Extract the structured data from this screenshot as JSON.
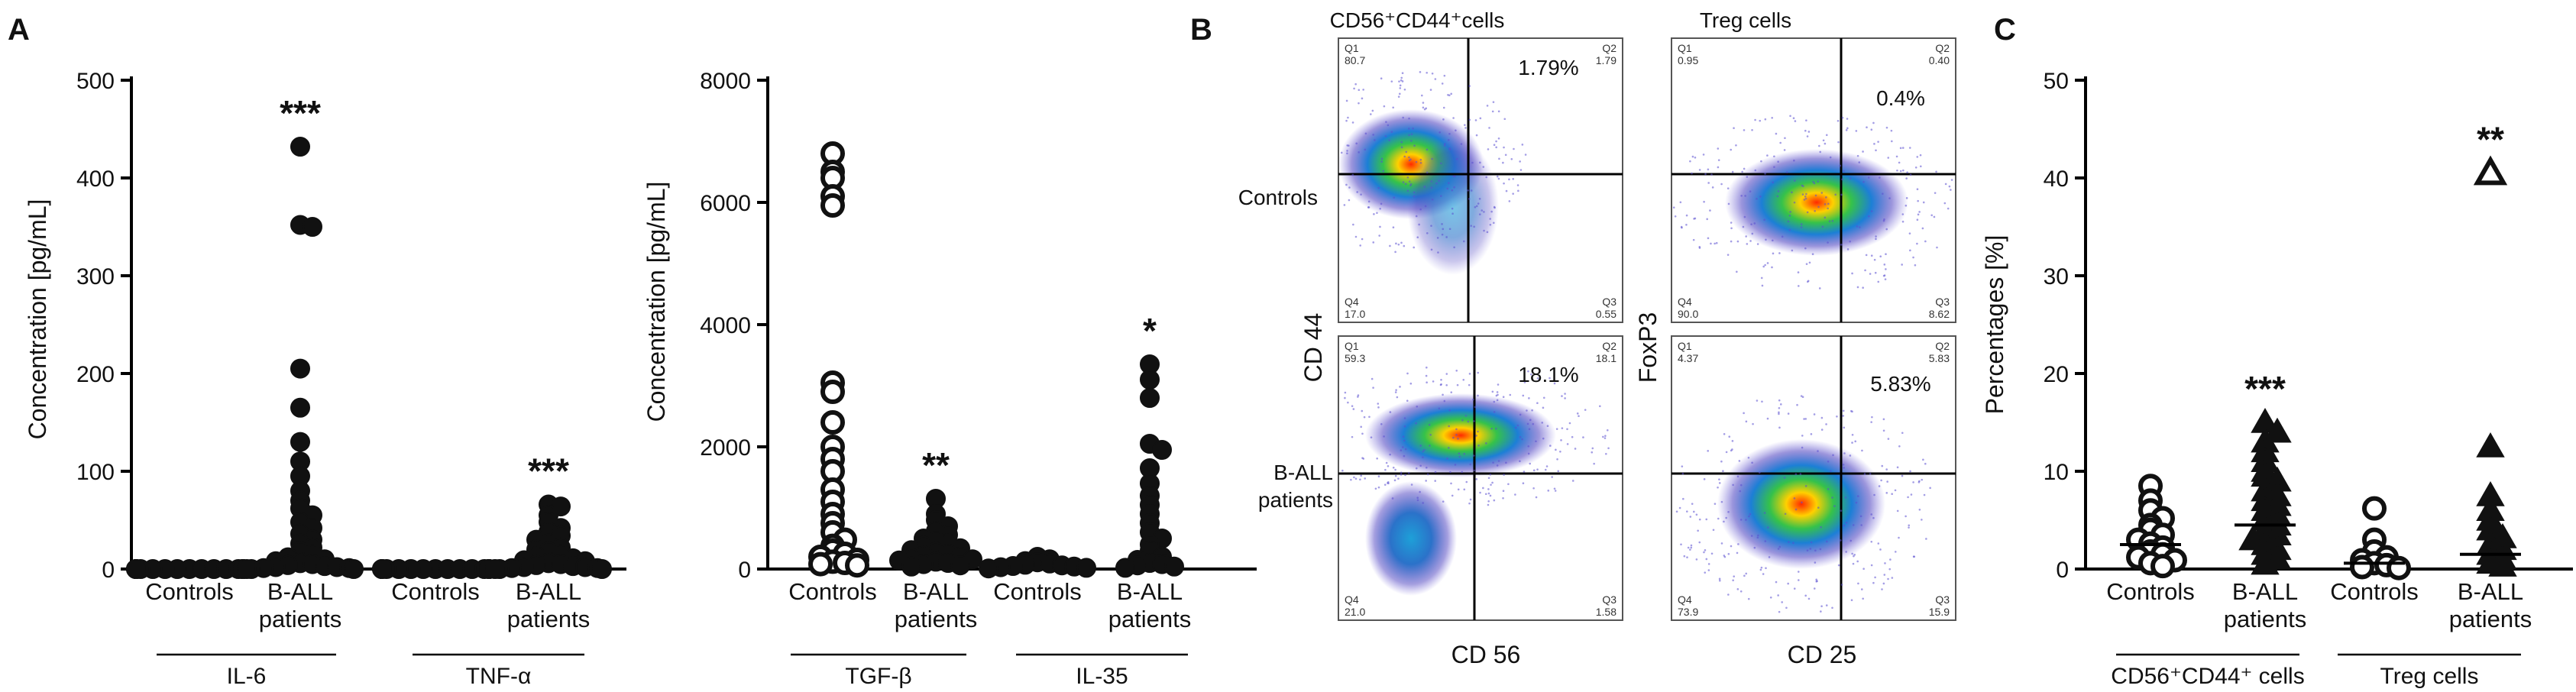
{
  "panels": {
    "a": "A",
    "b": "B",
    "c": "C"
  },
  "chart_data": [
    {
      "id": "A1",
      "type": "scatter",
      "ylabel": "Concentration [pg/mL]",
      "ylim": [
        0,
        500
      ],
      "yticks": [
        "0",
        "100",
        "200",
        "300",
        "400",
        "500"
      ],
      "ytick_values": [
        0,
        100,
        200,
        300,
        400,
        500
      ],
      "categories": [
        "Controls",
        "B-ALL patients",
        "Controls",
        "B-ALL patients"
      ],
      "category_lines": [
        [
          "Controls"
        ],
        [
          "B-ALL",
          "patients"
        ],
        [
          "Controls"
        ],
        [
          "B-ALL",
          "patients"
        ]
      ],
      "groups": [
        {
          "label": "IL-6",
          "span": [
            0,
            1
          ]
        },
        {
          "label": "TNF-α",
          "span": [
            2,
            3
          ]
        }
      ],
      "significance": [
        "",
        "***",
        "",
        "***"
      ],
      "marker": [
        "filled",
        "filled",
        "filled",
        "filled"
      ],
      "series": [
        {
          "name": "IL-6 Controls",
          "values": [
            0,
            0,
            0,
            0,
            0,
            0,
            0,
            0,
            0,
            0,
            0,
            0,
            0,
            0,
            0
          ]
        },
        {
          "name": "IL-6 B-ALL patients",
          "values": [
            432,
            352,
            350,
            205,
            165,
            130,
            110,
            95,
            80,
            70,
            62,
            55,
            48,
            42,
            36,
            30,
            26,
            22,
            18,
            15,
            12,
            10,
            8,
            6,
            5,
            4,
            3,
            2,
            2,
            1,
            1,
            0,
            0,
            0
          ]
        },
        {
          "name": "TNF-α Controls",
          "values": [
            0,
            0,
            0,
            0,
            0,
            0,
            0,
            0,
            0,
            0,
            0,
            0,
            0,
            0,
            0
          ]
        },
        {
          "name": "TNF-α B-ALL patients",
          "values": [
            66,
            64,
            55,
            48,
            42,
            38,
            34,
            30,
            26,
            22,
            20,
            18,
            15,
            13,
            11,
            9,
            8,
            6,
            5,
            4,
            3,
            2,
            2,
            1,
            1,
            0,
            0,
            0
          ]
        }
      ]
    },
    {
      "id": "A2",
      "type": "scatter",
      "ylabel": "Concentration [pg/mL]",
      "ylim": [
        0,
        8000
      ],
      "yticks": [
        "0",
        "2000",
        "4000",
        "6000",
        "8000"
      ],
      "ytick_values": [
        0,
        2000,
        4000,
        6000,
        8000
      ],
      "categories": [
        "Controls",
        "B-ALL patients",
        "Controls",
        "B-ALL patients"
      ],
      "category_lines": [
        [
          "Controls"
        ],
        [
          "B-ALL",
          "patients"
        ],
        [
          "Controls"
        ],
        [
          "B-ALL",
          "patients"
        ]
      ],
      "groups": [
        {
          "label": "TGF-β",
          "span": [
            0,
            1
          ]
        },
        {
          "label": "IL-35",
          "span": [
            2,
            3
          ]
        }
      ],
      "significance": [
        "",
        "**",
        "",
        "*"
      ],
      "marker": [
        "open",
        "filled",
        "filled",
        "filled"
      ],
      "series": [
        {
          "name": "TGF-β Controls",
          "values": [
            6800,
            6500,
            6400,
            6100,
            5950,
            3050,
            2900,
            2400,
            2000,
            1800,
            1600,
            1300,
            1100,
            900,
            750,
            600,
            480,
            380,
            300,
            250,
            200,
            150,
            120,
            100,
            80,
            60
          ]
        },
        {
          "name": "TGF-β B-ALL patients",
          "values": [
            1150,
            900,
            800,
            700,
            620,
            560,
            500,
            460,
            420,
            380,
            340,
            310,
            280,
            250,
            220,
            200,
            180,
            160,
            140,
            120,
            100,
            80,
            60,
            40
          ]
        },
        {
          "name": "IL-35 Controls",
          "values": [
            200,
            160,
            130,
            110,
            90,
            70,
            60,
            50,
            40,
            30,
            20,
            10
          ]
        },
        {
          "name": "IL-35 B-ALL patients",
          "values": [
            3350,
            3100,
            2800,
            2050,
            1950,
            1650,
            1400,
            1200,
            1050,
            900,
            750,
            600,
            500,
            400,
            300,
            200,
            150,
            100,
            80,
            60,
            40,
            20
          ]
        }
      ]
    },
    {
      "id": "C",
      "type": "scatter",
      "ylabel": "Percentages [%]",
      "ylim": [
        0,
        50
      ],
      "yticks": [
        "0",
        "10",
        "20",
        "30",
        "40",
        "50"
      ],
      "ytick_values": [
        0,
        10,
        20,
        30,
        40,
        50
      ],
      "categories": [
        "Controls",
        "B-ALL patients",
        "Controls",
        "B-ALL patients"
      ],
      "category_lines": [
        [
          "Controls"
        ],
        [
          "B-ALL",
          "patients"
        ],
        [
          "Controls"
        ],
        [
          "B-ALL",
          "patients"
        ]
      ],
      "groups": [
        {
          "label": "CD56⁺CD44⁺ cells",
          "span": [
            0,
            1
          ]
        },
        {
          "label": "Treg cells",
          "span": [
            2,
            3
          ]
        }
      ],
      "significance": [
        "",
        "***",
        "",
        "**"
      ],
      "marker": [
        "open-circle",
        "triangle",
        "open-circle",
        "triangle"
      ],
      "means": [
        2.5,
        4.5,
        0.6,
        1.5
      ],
      "series": [
        {
          "name": "CD56+CD44+ Controls",
          "values": [
            8.5,
            7.0,
            6.0,
            5.2,
            4.5,
            4.0,
            3.5,
            3.0,
            2.6,
            2.2,
            1.8,
            1.5,
            1.2,
            0.9,
            0.6,
            0.3
          ]
        },
        {
          "name": "CD56+CD44+ B-ALL patients",
          "values": [
            15,
            14,
            13,
            12,
            11,
            10,
            9.5,
            9,
            8,
            7.5,
            7,
            6.5,
            6,
            5.5,
            5,
            4.5,
            4,
            3.5,
            3,
            2.5,
            2,
            1.5,
            1,
            0.5
          ]
        },
        {
          "name": "Treg Controls",
          "values": [
            6.2,
            3.0,
            1.8,
            1.2,
            0.9,
            0.6,
            0.4,
            0.2,
            0.1
          ]
        },
        {
          "name": "Treg B-ALL patients",
          "values": [
            40.5,
            12.5,
            7.5,
            6.0,
            5.0,
            4.0,
            3.2,
            2.5,
            2.0,
            1.5,
            1.0,
            0.6,
            0.3
          ]
        }
      ]
    }
  ],
  "flow": {
    "col_titles": [
      "CD56⁺CD44⁺cells",
      "Treg cells"
    ],
    "row_labels": [
      [
        "Controls"
      ],
      [
        "B-ALL",
        "patients"
      ]
    ],
    "y_axes": [
      "CD 44",
      "FoxP3"
    ],
    "x_axes": [
      "CD 56",
      "CD 25"
    ],
    "plots": [
      {
        "name": "cd56-controls",
        "pct": "1.79%",
        "q1": "Q1",
        "q1v": "80.7",
        "q2": "Q2",
        "q2v": "1.79",
        "q3": "Q3",
        "q3v": "0.55",
        "q4": "Q4",
        "q4v": "17.0"
      },
      {
        "name": "treg-controls",
        "pct": "0.4%",
        "q1": "Q1",
        "q1v": "0.95",
        "q2": "Q2",
        "q2v": "0.40",
        "q3": "Q3",
        "q3v": "8.62",
        "q4": "Q4",
        "q4v": "90.0"
      },
      {
        "name": "cd56-ball",
        "pct": "18.1%",
        "q1": "Q1",
        "q1v": "59.3",
        "q2": "Q2",
        "q2v": "18.1",
        "q3": "Q3",
        "q3v": "1.58",
        "q4": "Q4",
        "q4v": "21.0"
      },
      {
        "name": "treg-ball",
        "pct": "5.83%",
        "q1": "Q1",
        "q1v": "4.37",
        "q2": "Q2",
        "q2v": "5.83",
        "q3": "Q3",
        "q3v": "15.9",
        "q4": "Q4",
        "q4v": "73.9"
      }
    ]
  }
}
